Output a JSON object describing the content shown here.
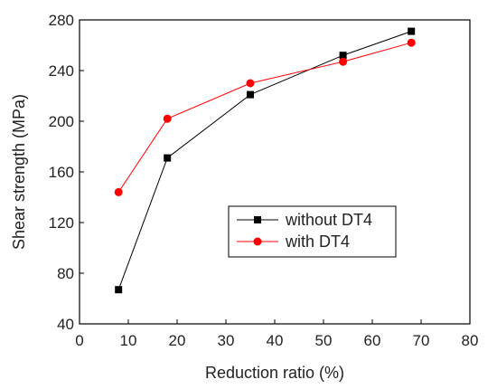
{
  "chart_data": {
    "type": "line",
    "xlabel": "Reduction ratio (%)",
    "ylabel": "Shear strength (MPa)",
    "xlim": [
      0,
      80
    ],
    "ylim": [
      40,
      280
    ],
    "xticks": [
      "0",
      "10",
      "20",
      "30",
      "40",
      "50",
      "60",
      "70",
      "80"
    ],
    "yticks": [
      "40",
      "80",
      "120",
      "160",
      "200",
      "240",
      "280"
    ],
    "grid": false,
    "legend_position": "center-right",
    "series": [
      {
        "name": "without DT4",
        "color": "#000000",
        "marker": "square",
        "x": [
          8,
          18,
          35,
          54,
          68
        ],
        "y": [
          67,
          171,
          221,
          252,
          271
        ]
      },
      {
        "name": "with DT4",
        "color": "#ff0000",
        "marker": "circle",
        "x": [
          8,
          18,
          35,
          54,
          68
        ],
        "y": [
          144,
          202,
          230,
          247,
          262
        ]
      }
    ]
  }
}
